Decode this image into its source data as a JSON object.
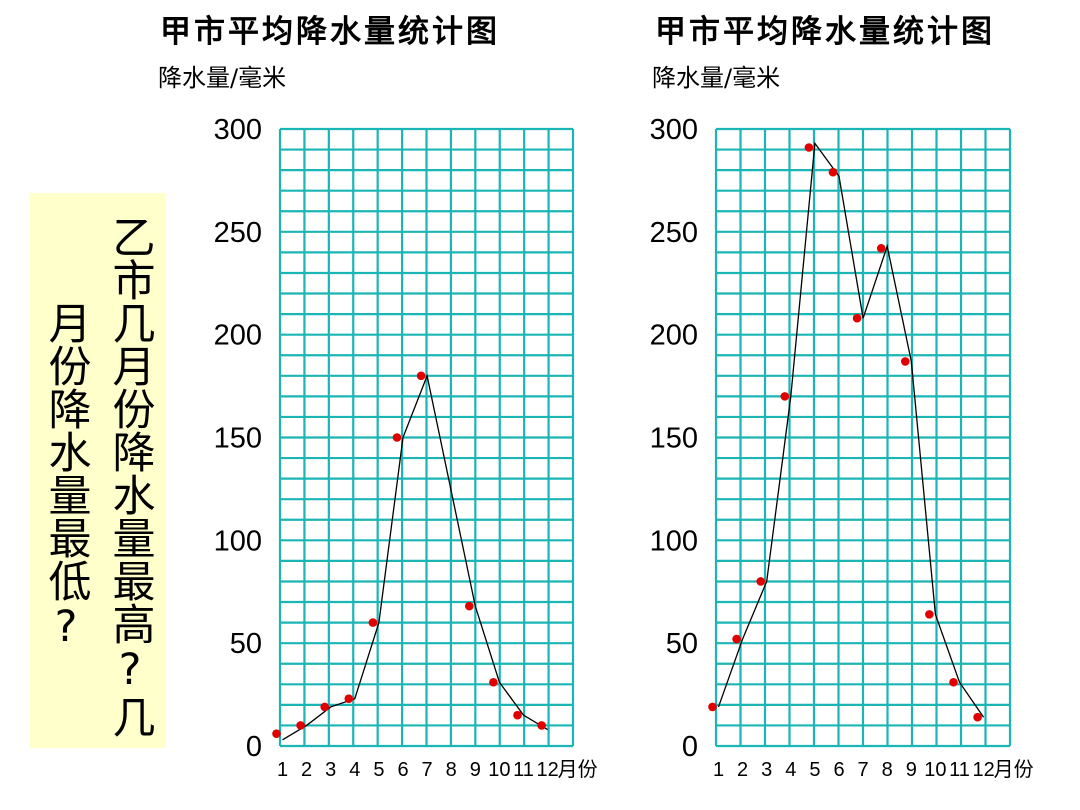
{
  "question": {
    "column_right": "乙市几月份降水量最高?几",
    "column_left": "月份降水量最低?"
  },
  "colors": {
    "grid": "#1bb5b5",
    "point": "#e00000",
    "line": "#000000",
    "question_background": "#ffffcc"
  },
  "chart_data": [
    {
      "type": "line",
      "title": "甲市平均降水量统计图",
      "ylabel": "降水量/毫米",
      "xlabel": "月份",
      "categories": [
        "1",
        "2",
        "3",
        "4",
        "5",
        "6",
        "7",
        "8",
        "9",
        "10",
        "11",
        "12"
      ],
      "y_ticks": [
        "300",
        "250",
        "200",
        "150",
        "100",
        "50",
        "0"
      ],
      "ylim": [
        0,
        300
      ],
      "grid": true,
      "series": [
        {
          "style": "red-dots",
          "values": [
            6,
            10,
            19,
            23,
            60,
            150,
            180,
            null,
            68,
            31,
            15,
            10
          ]
        },
        {
          "style": "black-line",
          "values": [
            3,
            10,
            19,
            23,
            60,
            150,
            180,
            null,
            68,
            31,
            15,
            8
          ]
        }
      ]
    },
    {
      "type": "line",
      "title": "甲市平均降水量统计图",
      "ylabel": "降水量/毫米",
      "xlabel": "月份",
      "categories": [
        "1",
        "2",
        "3",
        "4",
        "5",
        "6",
        "7",
        "8",
        "9",
        "10",
        "11",
        "12"
      ],
      "y_ticks": [
        "300",
        "250",
        "200",
        "150",
        "100",
        "50",
        "0"
      ],
      "ylim": [
        0,
        300
      ],
      "grid": true,
      "series": [
        {
          "style": "red-dots",
          "values": [
            19,
            52,
            80,
            170,
            291,
            279,
            208,
            242,
            187,
            64,
            31,
            14
          ]
        },
        {
          "style": "black-line",
          "values": [
            19,
            52,
            80,
            170,
            293,
            277,
            208,
            243,
            187,
            64,
            31,
            14
          ]
        }
      ]
    }
  ]
}
